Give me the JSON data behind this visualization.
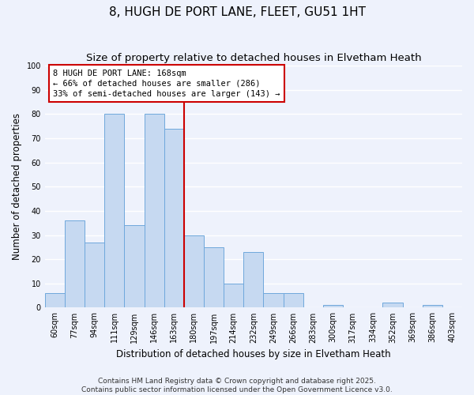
{
  "title": "8, HUGH DE PORT LANE, FLEET, GU51 1HT",
  "subtitle": "Size of property relative to detached houses in Elvetham Heath",
  "xlabel": "Distribution of detached houses by size in Elvetham Heath",
  "ylabel": "Number of detached properties",
  "bin_labels": [
    "60sqm",
    "77sqm",
    "94sqm",
    "111sqm",
    "129sqm",
    "146sqm",
    "163sqm",
    "180sqm",
    "197sqm",
    "214sqm",
    "232sqm",
    "249sqm",
    "266sqm",
    "283sqm",
    "300sqm",
    "317sqm",
    "334sqm",
    "352sqm",
    "369sqm",
    "386sqm",
    "403sqm"
  ],
  "bar_heights": [
    6,
    36,
    27,
    80,
    34,
    80,
    74,
    30,
    25,
    10,
    23,
    6,
    6,
    0,
    1,
    0,
    0,
    2,
    0,
    1,
    0
  ],
  "bar_color": "#c6d9f1",
  "bar_edge_color": "#6fa8dc",
  "vline_x_idx": 6.5,
  "vline_color": "#cc0000",
  "annotation_lines": [
    "8 HUGH DE PORT LANE: 168sqm",
    "← 66% of detached houses are smaller (286)",
    "33% of semi-detached houses are larger (143) →"
  ],
  "annotation_box_color": "#ffffff",
  "annotation_box_edge": "#cc0000",
  "ylim": [
    0,
    100
  ],
  "yticks": [
    0,
    10,
    20,
    30,
    40,
    50,
    60,
    70,
    80,
    90,
    100
  ],
  "footer_line1": "Contains HM Land Registry data © Crown copyright and database right 2025.",
  "footer_line2": "Contains public sector information licensed under the Open Government Licence v3.0.",
  "bg_color": "#eef2fc",
  "grid_color": "#ffffff",
  "title_fontsize": 11,
  "subtitle_fontsize": 9.5,
  "axis_label_fontsize": 8.5,
  "tick_fontsize": 7,
  "annotation_fontsize": 7.5,
  "footer_fontsize": 6.5
}
